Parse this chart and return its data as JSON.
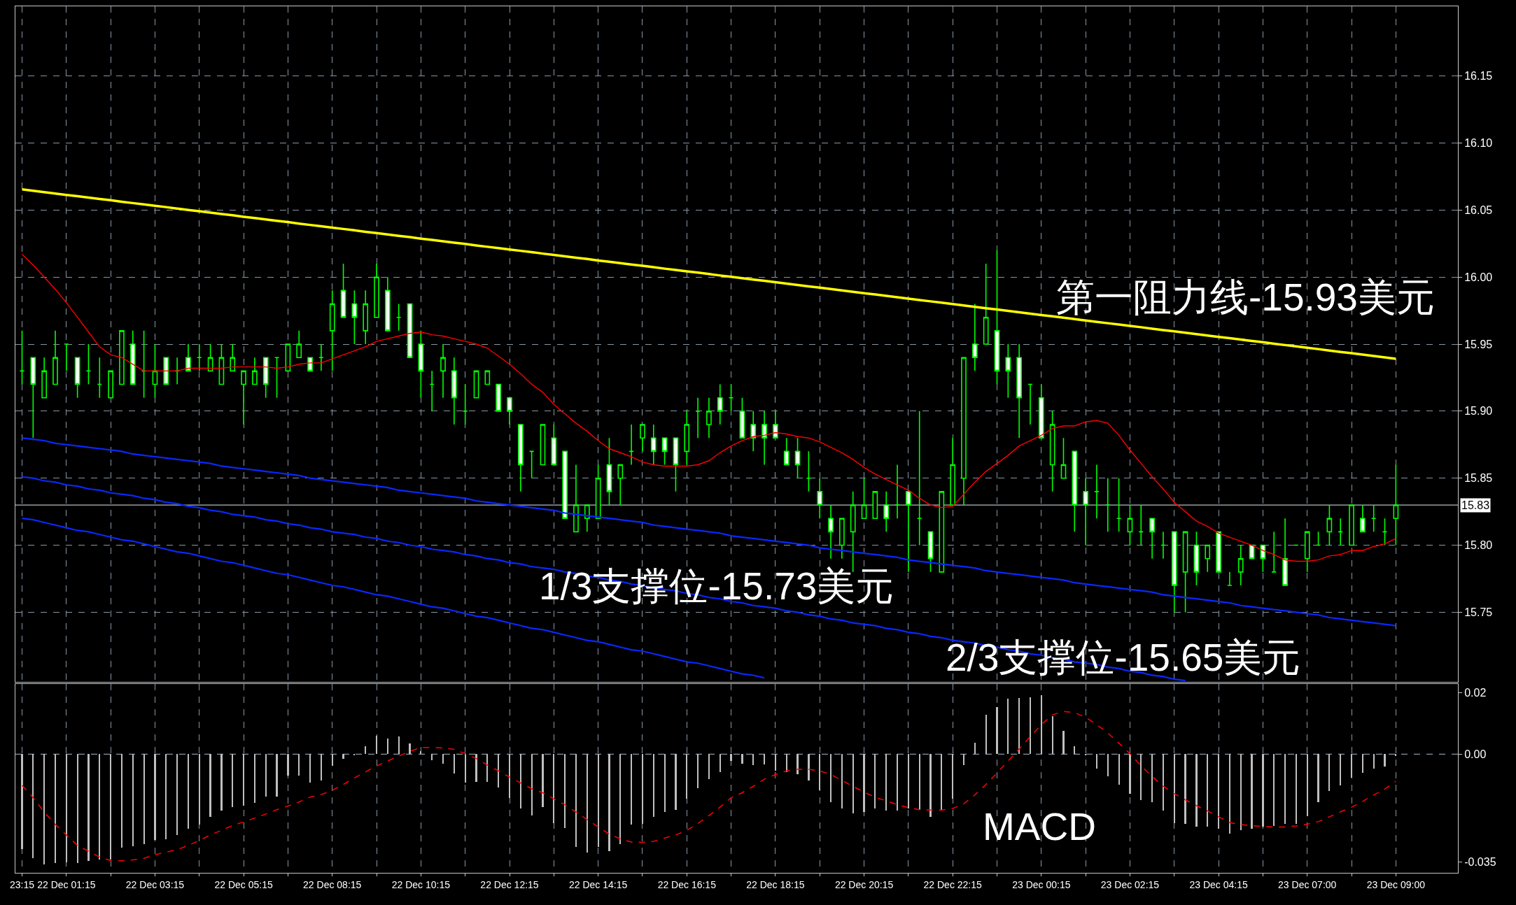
{
  "chart_data": [
    {
      "type": "candlestick",
      "color": "#00ff00",
      "categories": [
        null,
        null,
        null,
        null,
        null,
        null,
        null,
        null,
        null,
        null,
        null,
        null,
        null,
        null,
        null,
        null,
        null,
        null,
        null,
        null,
        null,
        null,
        null,
        null,
        null,
        null,
        null,
        null,
        null,
        null,
        null,
        null,
        null,
        null,
        null,
        null,
        null,
        null,
        null,
        null,
        null,
        null,
        null,
        null,
        null,
        null,
        null,
        null,
        null,
        null,
        null,
        null,
        null,
        null,
        null,
        null,
        null,
        null,
        null,
        null,
        null,
        null,
        null,
        null,
        null,
        null,
        null,
        null,
        null,
        null,
        null,
        null,
        null,
        null,
        null,
        null,
        null,
        null,
        null,
        null,
        null,
        null,
        null,
        null,
        null,
        null,
        null,
        null,
        null,
        null,
        null,
        null,
        null,
        null,
        null,
        null,
        null,
        null,
        null,
        null,
        null,
        null,
        null,
        null,
        null,
        null,
        null,
        null,
        null,
        null,
        null,
        null,
        null,
        null,
        null,
        null,
        null,
        null,
        null,
        null,
        null,
        null,
        null,
        null,
        null
      ],
      "ohlc": [
        [
          15.93,
          15.96,
          15.92,
          15.93
        ],
        [
          15.94,
          15.94,
          15.88,
          15.92
        ],
        [
          15.91,
          15.94,
          15.91,
          15.93
        ],
        [
          15.92,
          15.96,
          15.92,
          15.94
        ],
        [
          15.95,
          15.95,
          15.93,
          15.95
        ],
        [
          15.94,
          15.94,
          15.91,
          15.92
        ],
        [
          15.93,
          15.95,
          15.92,
          15.93
        ],
        [
          15.92,
          15.94,
          15.91,
          15.92
        ],
        [
          15.91,
          15.93,
          15.91,
          15.93
        ],
        [
          15.92,
          15.96,
          15.92,
          15.96
        ],
        [
          15.95,
          15.96,
          15.92,
          15.92
        ],
        [
          15.93,
          15.96,
          15.91,
          15.93
        ],
        [
          15.92,
          15.95,
          15.91,
          15.93
        ],
        [
          15.94,
          15.94,
          15.92,
          15.92
        ],
        [
          15.93,
          15.94,
          15.92,
          15.93
        ],
        [
          15.94,
          15.95,
          15.93,
          15.93
        ],
        [
          15.94,
          15.95,
          15.93,
          15.94
        ],
        [
          15.93,
          15.95,
          15.93,
          15.94
        ],
        [
          15.92,
          15.95,
          15.92,
          15.94
        ],
        [
          15.93,
          15.95,
          15.93,
          15.94
        ],
        [
          15.92,
          15.93,
          15.89,
          15.93
        ],
        [
          15.92,
          15.94,
          15.92,
          15.93
        ],
        [
          15.94,
          15.94,
          15.91,
          15.92
        ],
        [
          15.94,
          15.94,
          15.91,
          15.94
        ],
        [
          15.93,
          15.95,
          15.93,
          15.95
        ],
        [
          15.94,
          15.96,
          15.94,
          15.95
        ],
        [
          15.94,
          15.94,
          15.93,
          15.93
        ],
        [
          15.94,
          15.95,
          15.93,
          15.94
        ],
        [
          15.96,
          15.99,
          15.93,
          15.98
        ],
        [
          15.99,
          16.01,
          15.97,
          15.97
        ],
        [
          15.98,
          15.99,
          15.95,
          15.97
        ],
        [
          15.96,
          15.99,
          15.95,
          15.98
        ],
        [
          15.97,
          16.01,
          15.97,
          16.0
        ],
        [
          15.99,
          16.0,
          15.96,
          15.96
        ],
        [
          15.97,
          15.98,
          15.96,
          15.97
        ],
        [
          15.98,
          15.98,
          15.94,
          15.94
        ],
        [
          15.95,
          15.96,
          15.91,
          15.93
        ],
        [
          15.92,
          15.93,
          15.9,
          15.92
        ],
        [
          15.93,
          15.95,
          15.91,
          15.94
        ],
        [
          15.93,
          15.94,
          15.89,
          15.91
        ],
        [
          15.9,
          15.92,
          15.89,
          15.9
        ],
        [
          15.91,
          15.93,
          15.91,
          15.93
        ],
        [
          15.92,
          15.93,
          15.92,
          15.93
        ],
        [
          15.92,
          15.92,
          15.9,
          15.9
        ],
        [
          15.91,
          15.91,
          15.89,
          15.9
        ],
        [
          15.89,
          15.89,
          15.84,
          15.86
        ],
        [
          15.87,
          15.87,
          15.85,
          15.87
        ],
        [
          15.86,
          15.89,
          15.86,
          15.89
        ],
        [
          15.88,
          15.89,
          15.86,
          15.86
        ],
        [
          15.87,
          15.87,
          15.82,
          15.82
        ],
        [
          15.81,
          15.86,
          15.81,
          15.83
        ],
        [
          15.82,
          15.83,
          15.81,
          15.83
        ],
        [
          15.82,
          15.86,
          15.82,
          15.85
        ],
        [
          15.86,
          15.88,
          15.83,
          15.84
        ],
        [
          15.85,
          15.86,
          15.83,
          15.86
        ],
        [
          15.87,
          15.89,
          15.86,
          15.87
        ],
        [
          15.88,
          15.89,
          15.87,
          15.89
        ],
        [
          15.88,
          15.89,
          15.86,
          15.87
        ],
        [
          15.88,
          15.88,
          15.86,
          15.87
        ],
        [
          15.88,
          15.88,
          15.84,
          15.86
        ],
        [
          15.87,
          15.9,
          15.86,
          15.89
        ],
        [
          15.9,
          15.91,
          15.88,
          15.9
        ],
        [
          15.89,
          15.91,
          15.88,
          15.9
        ],
        [
          15.91,
          15.92,
          15.89,
          15.9
        ],
        [
          15.91,
          15.92,
          15.9,
          15.91
        ],
        [
          15.9,
          15.91,
          15.88,
          15.88
        ],
        [
          15.89,
          15.9,
          15.87,
          15.88
        ],
        [
          15.89,
          15.9,
          15.86,
          15.88
        ],
        [
          15.89,
          15.9,
          15.88,
          15.88
        ],
        [
          15.87,
          15.88,
          15.86,
          15.86
        ],
        [
          15.87,
          15.88,
          15.85,
          15.86
        ],
        [
          15.85,
          15.87,
          15.84,
          15.85
        ],
        [
          15.84,
          15.85,
          15.82,
          15.83
        ],
        [
          15.82,
          15.83,
          15.79,
          15.81
        ],
        [
          15.8,
          15.82,
          15.79,
          15.82
        ],
        [
          15.81,
          15.84,
          15.78,
          15.83
        ],
        [
          15.82,
          15.85,
          15.82,
          15.83
        ],
        [
          15.82,
          15.84,
          15.82,
          15.84
        ],
        [
          15.83,
          15.84,
          15.81,
          15.82
        ],
        [
          15.83,
          15.86,
          15.82,
          15.83
        ],
        [
          15.84,
          15.84,
          15.78,
          15.83
        ],
        [
          15.82,
          15.9,
          15.8,
          15.82
        ],
        [
          15.81,
          15.81,
          15.78,
          15.79
        ],
        [
          15.78,
          15.84,
          15.78,
          15.84
        ],
        [
          15.83,
          15.88,
          15.83,
          15.86
        ],
        [
          15.85,
          15.94,
          15.83,
          15.94
        ],
        [
          15.95,
          15.98,
          15.93,
          15.94
        ],
        [
          15.95,
          16.01,
          15.95,
          15.97
        ],
        [
          15.96,
          16.02,
          15.92,
          15.93
        ],
        [
          15.94,
          15.95,
          15.91,
          15.93
        ],
        [
          15.94,
          15.95,
          15.88,
          15.91
        ],
        [
          15.92,
          15.92,
          15.89,
          15.92
        ],
        [
          15.91,
          15.92,
          15.88,
          15.88
        ],
        [
          15.86,
          15.9,
          15.84,
          15.89
        ],
        [
          15.85,
          15.88,
          15.85,
          15.86
        ],
        [
          15.87,
          15.87,
          15.81,
          15.83
        ],
        [
          15.84,
          15.85,
          15.8,
          15.83
        ],
        [
          15.84,
          15.86,
          15.82,
          15.84
        ],
        [
          15.83,
          15.85,
          15.81,
          15.83
        ],
        [
          15.82,
          15.85,
          15.81,
          15.82
        ],
        [
          15.81,
          15.83,
          15.8,
          15.82
        ],
        [
          15.81,
          15.83,
          15.8,
          15.81
        ],
        [
          15.82,
          15.82,
          15.79,
          15.81
        ],
        [
          15.8,
          15.81,
          15.79,
          15.8
        ],
        [
          15.81,
          15.81,
          15.75,
          15.77
        ],
        [
          15.78,
          15.81,
          15.75,
          15.81
        ],
        [
          15.8,
          15.81,
          15.77,
          15.78
        ],
        [
          15.79,
          15.8,
          15.78,
          15.8
        ],
        [
          15.81,
          15.81,
          15.78,
          15.78
        ],
        [
          15.77,
          15.78,
          15.77,
          15.77
        ],
        [
          15.78,
          15.8,
          15.77,
          15.79
        ],
        [
          15.8,
          15.8,
          15.79,
          15.79
        ],
        [
          15.8,
          15.8,
          15.78,
          15.79
        ],
        [
          15.78,
          15.81,
          15.78,
          15.78
        ],
        [
          15.79,
          15.82,
          15.77,
          15.77
        ],
        [
          15.8,
          15.8,
          15.8,
          15.8
        ],
        [
          15.79,
          15.81,
          15.78,
          15.81
        ],
        [
          15.8,
          15.81,
          15.8,
          15.8
        ],
        [
          15.81,
          15.83,
          15.8,
          15.82
        ],
        [
          15.81,
          15.82,
          15.8,
          15.81
        ],
        [
          15.8,
          15.83,
          15.8,
          15.83
        ],
        [
          15.82,
          15.83,
          15.81,
          15.81
        ],
        [
          15.82,
          15.83,
          15.81,
          15.82
        ],
        [
          15.81,
          15.82,
          15.8,
          15.81
        ],
        [
          15.82,
          15.86,
          15.8,
          15.83
        ]
      ],
      "series": [
        {
          "type": "line",
          "color": "#ff0000",
          "values": [
            16.017,
            16.009,
            16.0,
            15.991,
            15.981,
            15.97,
            15.959,
            15.948,
            15.942,
            15.94,
            15.935,
            15.93,
            15.93,
            15.93,
            15.93,
            15.932,
            15.932,
            15.932,
            15.932,
            15.933,
            15.933,
            15.933,
            15.933,
            15.932,
            15.933,
            15.935,
            15.936,
            15.936,
            15.939,
            15.942,
            15.945,
            15.948,
            15.952,
            15.954,
            15.956,
            15.958,
            15.959,
            15.957,
            15.956,
            15.954,
            15.952,
            15.95,
            15.947,
            15.941,
            15.935,
            15.928,
            15.92,
            15.914,
            15.905,
            15.898,
            15.891,
            15.885,
            15.878,
            15.872,
            15.869,
            15.866,
            15.862,
            15.86,
            15.859,
            15.859,
            15.859,
            15.86,
            15.863,
            15.869,
            15.874,
            15.878,
            15.881,
            15.882,
            15.884,
            15.883,
            15.881,
            15.88,
            15.877,
            15.873,
            15.869,
            15.864,
            15.858,
            15.853,
            15.849,
            15.845,
            15.841,
            15.835,
            15.83,
            15.828,
            15.829,
            15.838,
            15.847,
            15.855,
            15.861,
            15.867,
            15.874,
            15.878,
            15.882,
            15.887,
            15.889,
            15.889,
            15.892,
            15.893,
            15.891,
            15.882,
            15.871,
            15.861,
            15.851,
            15.842,
            15.832,
            15.825,
            15.818,
            15.814,
            15.809,
            15.806,
            15.803,
            15.8,
            15.796,
            15.793,
            15.789,
            15.788,
            15.788,
            15.789,
            15.792,
            15.793,
            15.796,
            15.796,
            15.799,
            15.801,
            15.805
          ]
        },
        {
          "type": "line",
          "color": "#ffff00",
          "values": [
            16.0654,
            16.0644,
            16.0634,
            16.0623,
            16.0613,
            16.0603,
            16.0593,
            16.0583,
            16.0573,
            16.0562,
            16.0552,
            16.0542,
            16.0532,
            16.0522,
            16.0511,
            16.0501,
            16.0491,
            16.0481,
            16.0471,
            16.0461,
            16.045,
            16.044,
            16.043,
            16.042,
            16.041,
            16.0399,
            16.0389,
            16.0379,
            16.0369,
            16.0359,
            16.0349,
            16.0338,
            16.0328,
            16.0318,
            16.0308,
            16.0298,
            16.0287,
            16.0277,
            16.0267,
            16.0257,
            16.0247,
            16.0236,
            16.0226,
            16.0216,
            16.0206,
            16.0196,
            16.0186,
            16.0175,
            16.0165,
            16.0155,
            16.0145,
            16.0135,
            16.0124,
            16.0114,
            16.0104,
            16.0094,
            16.0084,
            16.0074,
            16.0063,
            16.0053,
            16.0043,
            16.0033,
            16.0023,
            16.0012,
            16.0002,
            15.9992,
            15.9982,
            15.9972,
            15.9962,
            15.9951,
            15.9941,
            15.9931,
            15.9921,
            15.9911,
            15.99,
            15.989,
            15.988,
            15.987,
            15.986,
            15.985,
            15.9839,
            15.9829,
            15.9819,
            15.9809,
            15.9799,
            15.9788,
            15.9778,
            15.9768,
            15.9758,
            15.9748,
            15.9738,
            15.9727,
            15.9717,
            15.9707,
            15.9697,
            15.9687,
            15.9676,
            15.9666,
            15.9656,
            15.9646,
            15.9636,
            15.9626,
            15.9615,
            15.9605,
            15.9595,
            15.9585,
            15.9575,
            15.9564,
            15.9554,
            15.9544,
            15.9534,
            15.9524,
            15.9514,
            15.9503,
            15.9493,
            15.9483,
            15.9473,
            15.9463,
            15.9452,
            15.9442,
            15.9432,
            15.9422,
            15.9412,
            15.9401,
            15.9391
          ]
        },
        {
          "type": "line",
          "color": "#0a28ff",
          "values": [
            15.88,
            15.879,
            15.878,
            15.876,
            15.875,
            15.874,
            15.873,
            15.872,
            15.871,
            15.87,
            15.868,
            15.867,
            15.866,
            15.865,
            15.864,
            15.863,
            15.862,
            15.861,
            15.859,
            15.858,
            15.857,
            15.856,
            15.855,
            15.854,
            15.853,
            15.852,
            15.85,
            15.849,
            15.848,
            15.847,
            15.846,
            15.845,
            15.844,
            15.843,
            15.841,
            15.84,
            15.839,
            15.838,
            15.837,
            15.836,
            15.835,
            15.833,
            15.832,
            15.831,
            15.83,
            15.829,
            15.828,
            15.827,
            15.826,
            15.824,
            15.823,
            15.822,
            15.821,
            15.82,
            15.819,
            15.818,
            15.817,
            15.815,
            15.814,
            15.813,
            15.812,
            15.811,
            15.81,
            15.809,
            15.807,
            15.806,
            15.805,
            15.804,
            15.803,
            15.802,
            15.801,
            15.8,
            15.798,
            15.797,
            15.796,
            15.795,
            15.794,
            15.793,
            15.792,
            15.791,
            15.789,
            15.788,
            15.787,
            15.786,
            15.785,
            15.784,
            15.783,
            15.781,
            15.78,
            15.779,
            15.778,
            15.777,
            15.776,
            15.775,
            15.774,
            15.772,
            15.771,
            15.77,
            15.769,
            15.768,
            15.767,
            15.766,
            15.765,
            15.763,
            15.762,
            15.761,
            15.76,
            15.759,
            15.758,
            15.757,
            15.755,
            15.754,
            15.753,
            15.752,
            15.751,
            15.75,
            15.749,
            15.748,
            15.746,
            15.745,
            15.744,
            15.743,
            15.742,
            15.741,
            15.74
          ]
        },
        {
          "type": "line",
          "color": "#0a28ff",
          "values": [
            15.851,
            15.85,
            15.848,
            15.847,
            15.845,
            15.844,
            15.842,
            15.841,
            15.839,
            15.838,
            15.837,
            15.835,
            15.834,
            15.832,
            15.831,
            15.829,
            15.828,
            15.826,
            15.825,
            15.823,
            15.822,
            15.821,
            15.819,
            15.818,
            15.816,
            15.815,
            15.813,
            15.812,
            15.81,
            15.809,
            15.808,
            15.806,
            15.805,
            15.803,
            15.802,
            15.8,
            15.799,
            15.797,
            15.796,
            15.795,
            15.793,
            15.792,
            15.79,
            15.789,
            15.787,
            15.786,
            15.784,
            15.783,
            15.782,
            15.78,
            15.779,
            15.777,
            15.776,
            15.774,
            15.773,
            15.771,
            15.77,
            15.768,
            15.767,
            15.766,
            15.764,
            15.763,
            15.761,
            15.76,
            15.758,
            15.757,
            15.755,
            15.754,
            15.753,
            15.751,
            15.75,
            15.748,
            15.747,
            15.745,
            15.744,
            15.742,
            15.741,
            15.74,
            15.738,
            15.737,
            15.735,
            15.734,
            15.732,
            15.731,
            15.729,
            15.728,
            15.727,
            15.725,
            15.724,
            15.722,
            15.721,
            15.719,
            15.718,
            15.716,
            15.715,
            15.713,
            15.712,
            15.711,
            15.709,
            15.708,
            15.706,
            15.705,
            15.703,
            15.702,
            15.7,
            15.699,
            null,
            null,
            null,
            null,
            null,
            null,
            null,
            null,
            null,
            null,
            null,
            null,
            null,
            null,
            null,
            null,
            null,
            null,
            null
          ]
        },
        {
          "type": "line",
          "color": "#0a28ff",
          "values": [
            15.82,
            15.819,
            15.817,
            15.815,
            15.813,
            15.811,
            15.81,
            15.808,
            15.806,
            15.804,
            15.803,
            15.801,
            15.799,
            15.797,
            15.795,
            15.794,
            15.792,
            15.79,
            15.788,
            15.787,
            15.785,
            15.783,
            15.781,
            15.779,
            15.778,
            15.776,
            15.774,
            15.772,
            15.77,
            15.769,
            15.767,
            15.765,
            15.763,
            15.762,
            15.76,
            15.758,
            15.756,
            15.754,
            15.753,
            15.751,
            15.749,
            15.747,
            15.746,
            15.744,
            15.742,
            15.74,
            15.738,
            15.737,
            15.735,
            15.733,
            15.731,
            15.729,
            15.728,
            15.726,
            15.724,
            15.722,
            15.721,
            15.719,
            15.717,
            15.715,
            15.713,
            15.712,
            15.71,
            15.708,
            15.706,
            15.704,
            15.703,
            15.701,
            null,
            null,
            null,
            null,
            null,
            null,
            null,
            null,
            null,
            null,
            null,
            null,
            null,
            null,
            null,
            null,
            null,
            null,
            null,
            null,
            null,
            null,
            null,
            null,
            null,
            null,
            null,
            null,
            null,
            null,
            null,
            null,
            null,
            null,
            null,
            null,
            null,
            null,
            null,
            null,
            null,
            null,
            null,
            null,
            null,
            null,
            null,
            null,
            null,
            null,
            null,
            null,
            null,
            null,
            null,
            null,
            null
          ]
        }
      ],
      "ylim": [
        15.698,
        16.202
      ],
      "yticks": [
        16.15,
        {
          "value": 16.1,
          "label": "16.10"
        },
        16.05,
        {
          "value": 16,
          "label": "16.00"
        },
        15.95,
        {
          "value": 15.9,
          "label": "15.90"
        },
        15.85,
        {
          "value": 15.8,
          "label": "15.80"
        },
        15.75
      ],
      "tick_labels": "y",
      "grid": true,
      "ref_lines": [
        {
          "axis": "y",
          "value": 15.83,
          "label": "15.83",
          "color": "#b4bcc4"
        }
      ],
      "annotations": [
        "第一阻力线-15.93美元",
        "1/3支撑位-15.73美元",
        "2/3支撑位-15.65美元"
      ]
    },
    {
      "type": "bar",
      "categories": [
        "23:15",
        null,
        null,
        null,
        "22 Dec 01:15",
        null,
        null,
        null,
        null,
        null,
        null,
        null,
        "22 Dec 03:15",
        null,
        null,
        null,
        null,
        null,
        null,
        null,
        "22 Dec 05:15",
        null,
        null,
        null,
        null,
        null,
        null,
        null,
        "22 Dec 08:15",
        null,
        null,
        null,
        null,
        null,
        null,
        null,
        "22 Dec 10:15",
        null,
        null,
        null,
        null,
        null,
        null,
        null,
        "22 Dec 12:15",
        null,
        null,
        null,
        null,
        null,
        null,
        null,
        "22 Dec 14:15",
        null,
        null,
        null,
        null,
        null,
        null,
        null,
        "22 Dec 16:15",
        null,
        null,
        null,
        null,
        null,
        null,
        null,
        "22 Dec 18:15",
        null,
        null,
        null,
        null,
        null,
        null,
        null,
        "22 Dec 20:15",
        null,
        null,
        null,
        null,
        null,
        null,
        null,
        "22 Dec 22:15",
        null,
        null,
        null,
        null,
        null,
        null,
        null,
        "23 Dec 00:15",
        null,
        null,
        null,
        null,
        null,
        null,
        null,
        "23 Dec 02:15",
        null,
        null,
        null,
        null,
        null,
        null,
        null,
        "23 Dec 04:15",
        null,
        null,
        null,
        null,
        null,
        null,
        null,
        "23 Dec 07:00",
        null,
        null,
        null,
        null,
        null,
        null,
        null,
        "23 Dec 09:00"
      ],
      "series": [
        {
          "color": "#c0c0c0",
          "values": [
            -0.0307,
            -0.0338,
            -0.0357,
            -0.0354,
            -0.0351,
            -0.0354,
            -0.0346,
            -0.0342,
            -0.0342,
            -0.0304,
            -0.0299,
            -0.0291,
            -0.0278,
            -0.0275,
            -0.0262,
            -0.0243,
            -0.0228,
            -0.0204,
            -0.0183,
            -0.0172,
            -0.0168,
            -0.0157,
            -0.0138,
            -0.0138,
            -0.007,
            -0.007,
            -0.0093,
            -0.0085,
            -0.0038,
            -0.0014,
            -0.0002,
            0.0025,
            0.006,
            0.0051,
            0.0057,
            0.0035,
            0.0009,
            -0.0019,
            -0.003,
            -0.0062,
            -0.0093,
            -0.0089,
            -0.0089,
            -0.0109,
            -0.0141,
            -0.0177,
            -0.0199,
            -0.0172,
            -0.0223,
            -0.024,
            -0.0302,
            -0.0319,
            -0.03,
            -0.0315,
            -0.0291,
            -0.0228,
            -0.0225,
            -0.0204,
            -0.0188,
            -0.018,
            -0.0145,
            -0.0111,
            -0.0081,
            -0.0057,
            -0.0022,
            -0.003,
            -0.0035,
            -0.0033,
            -0.0054,
            -0.0057,
            -0.0066,
            -0.0085,
            -0.0117,
            -0.0156,
            -0.0176,
            -0.0192,
            -0.0187,
            -0.0176,
            -0.0183,
            -0.0183,
            -0.0176,
            -0.018,
            -0.0203,
            -0.0183,
            -0.0145,
            -0.0035,
            0.0038,
            0.0128,
            0.0154,
            0.018,
            0.0183,
            0.0186,
            0.0191,
            0.0123,
            0.0076,
            0.0025,
            -0.0002,
            -0.0046,
            -0.0072,
            -0.0098,
            -0.0129,
            -0.0148,
            -0.0156,
            -0.0183,
            -0.0224,
            -0.0227,
            -0.0236,
            -0.0235,
            -0.0243,
            -0.0258,
            -0.0247,
            -0.0243,
            -0.0235,
            -0.0232,
            -0.0227,
            -0.0227,
            -0.02,
            -0.0156,
            -0.012,
            -0.0101,
            -0.0077,
            -0.0061,
            -0.0046,
            -0.0041,
            -0.0005
          ]
        },
        {
          "type": "line",
          "color": "#ff0000",
          "line_style": "dashed",
          "values": [
            -0.0101,
            -0.0141,
            -0.0188,
            -0.0228,
            -0.0262,
            -0.0296,
            -0.0315,
            -0.0334,
            -0.0345,
            -0.0346,
            -0.0343,
            -0.0338,
            -0.0326,
            -0.0318,
            -0.031,
            -0.0296,
            -0.028,
            -0.0262,
            -0.0247,
            -0.0231,
            -0.022,
            -0.0207,
            -0.0194,
            -0.018,
            -0.0168,
            -0.0155,
            -0.0139,
            -0.0131,
            -0.0117,
            -0.0098,
            -0.0077,
            -0.0057,
            -0.0038,
            -0.0022,
            -0.0006,
            0.0009,
            0.0022,
            0.0022,
            0.0021,
            0.0016,
            0.0002,
            -0.0014,
            -0.0035,
            -0.0054,
            -0.0074,
            -0.0093,
            -0.0112,
            -0.0125,
            -0.0145,
            -0.0164,
            -0.0188,
            -0.0212,
            -0.0236,
            -0.0259,
            -0.0275,
            -0.0285,
            -0.0286,
            -0.0283,
            -0.0272,
            -0.0262,
            -0.0247,
            -0.0225,
            -0.0199,
            -0.0172,
            -0.0141,
            -0.0125,
            -0.0104,
            -0.0081,
            -0.0066,
            -0.0054,
            -0.0049,
            -0.0049,
            -0.0054,
            -0.0066,
            -0.0085,
            -0.0104,
            -0.0123,
            -0.014,
            -0.0151,
            -0.0164,
            -0.0173,
            -0.018,
            -0.0181,
            -0.0181,
            -0.0176,
            -0.0161,
            -0.0132,
            -0.0098,
            -0.0061,
            -0.0022,
            0.0017,
            0.0057,
            0.0096,
            0.0128,
            0.0139,
            0.0135,
            0.012,
            0.0096,
            0.0069,
            0.0036,
            0.0002,
            -0.0038,
            -0.0072,
            -0.0104,
            -0.0128,
            -0.0148,
            -0.0167,
            -0.0184,
            -0.0203,
            -0.0222,
            -0.0228,
            -0.0232,
            -0.0235,
            -0.0236,
            -0.0236,
            -0.0233,
            -0.0227,
            -0.0219,
            -0.0203,
            -0.0187,
            -0.0172,
            -0.0153,
            -0.0132,
            -0.0113,
            -0.0088
          ]
        }
      ],
      "ylim": [
        -0.0385,
        0.0228
      ],
      "yticks": [
        0.02,
        {
          "value": 0,
          "label": "0.00"
        },
        -0.035
      ],
      "grid": "x",
      "ref_lines": [
        {
          "axis": "y",
          "value": 0,
          "color": "#8796a5",
          "line_style": "dashed"
        }
      ],
      "annotations": [
        "MACD"
      ]
    }
  ]
}
